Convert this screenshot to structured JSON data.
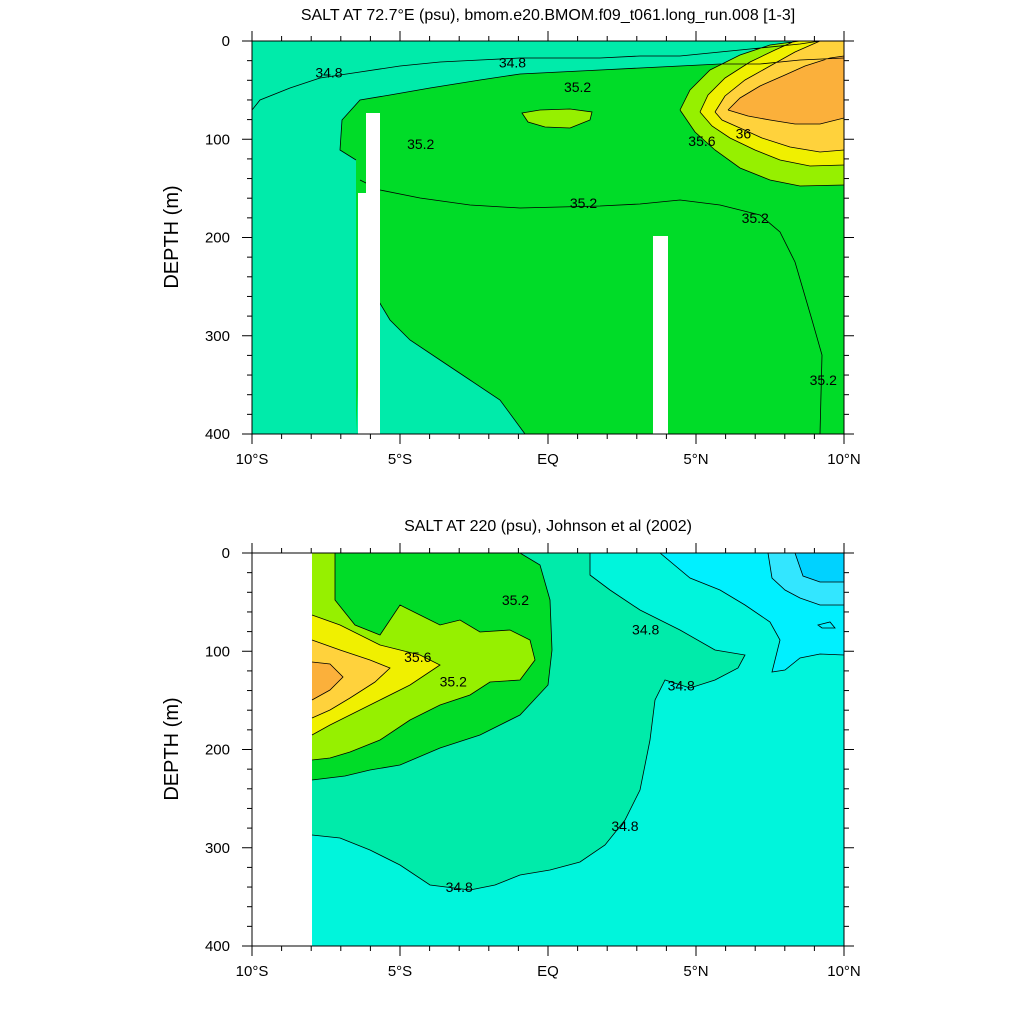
{
  "colors": {
    "lt_34_6": "#00f0ff",
    "c34_6_34_8": "#00f5dc",
    "c34_8_35_0": "#00ebaa",
    "c35_0_35_2": "#00dc28",
    "c35_2_35_4": "#96f000",
    "c35_4_35_6": "#f0f000",
    "c35_6_35_8": "#ffd23c",
    "c35_8_36_2": "#fbb03b",
    "fresh_top": "#33e6ff",
    "fresh_core": "#00d2ff",
    "missing": "#ffffff",
    "contour_line": "#000000"
  },
  "chart_data": [
    {
      "type": "contour",
      "title": "SALT AT  72.7°E (psu), bmom.e20.BMOM.f09_t061.long_run.008 [1-3]",
      "ylabel": "DEPTH (m)",
      "xlabel": "",
      "xlim": [
        -10,
        10
      ],
      "ylim": [
        400,
        0
      ],
      "x_ticks": [
        "10°S",
        "5°S",
        "EQ",
        "5°N",
        "10°N"
      ],
      "y_ticks": [
        0,
        100,
        200,
        300,
        400
      ],
      "contour_labels": [
        {
          "text": "34.8",
          "lat": -7.4,
          "depth": 32
        },
        {
          "text": "34.8",
          "lat": -1.2,
          "depth": 22
        },
        {
          "text": "35.2",
          "lat": 1.0,
          "depth": 47
        },
        {
          "text": "35.2",
          "lat": -4.3,
          "depth": 105
        },
        {
          "text": "35.6",
          "lat": 5.2,
          "depth": 102
        },
        {
          "text": "36",
          "lat": 6.6,
          "depth": 94
        },
        {
          "text": "35.2",
          "lat": 1.2,
          "depth": 165
        },
        {
          "text": "35.2",
          "lat": 7.0,
          "depth": 180
        },
        {
          "text": "35.2",
          "lat": 9.3,
          "depth": 345
        }
      ]
    },
    {
      "type": "contour",
      "title": "SALT AT 220 (psu), Johnson et al (2002)",
      "ylabel": "DEPTH (m)",
      "xlabel": "",
      "xlim": [
        -10,
        10
      ],
      "ylim": [
        400,
        0
      ],
      "x_ticks": [
        "10°S",
        "5°S",
        "EQ",
        "5°N",
        "10°N"
      ],
      "y_ticks": [
        0,
        100,
        200,
        300,
        400
      ],
      "contour_labels": [
        {
          "text": "35.2",
          "lat": -1.1,
          "depth": 48
        },
        {
          "text": "34.8",
          "lat": 3.3,
          "depth": 78
        },
        {
          "text": "35.6",
          "lat": -4.4,
          "depth": 106
        },
        {
          "text": "35.2",
          "lat": -3.2,
          "depth": 131
        },
        {
          "text": "34.8",
          "lat": 4.5,
          "depth": 135
        },
        {
          "text": "34.8",
          "lat": 2.6,
          "depth": 278
        },
        {
          "text": "34.8",
          "lat": -3.0,
          "depth": 340
        }
      ]
    }
  ]
}
